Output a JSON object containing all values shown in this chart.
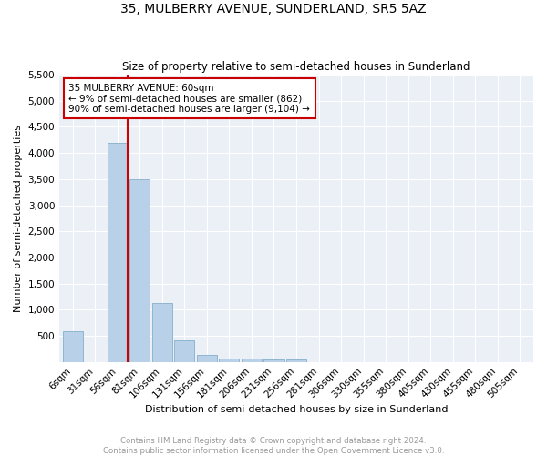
{
  "title": "35, MULBERRY AVENUE, SUNDERLAND, SR5 5AZ",
  "subtitle": "Size of property relative to semi-detached houses in Sunderland",
  "xlabel": "Distribution of semi-detached houses by size in Sunderland",
  "ylabel": "Number of semi-detached properties",
  "categories": [
    "6sqm",
    "31sqm",
    "56sqm",
    "81sqm",
    "106sqm",
    "131sqm",
    "156sqm",
    "181sqm",
    "206sqm",
    "231sqm",
    "256sqm",
    "281sqm",
    "306sqm",
    "330sqm",
    "355sqm",
    "380sqm",
    "405sqm",
    "430sqm",
    "455sqm",
    "480sqm",
    "505sqm"
  ],
  "bar_values": [
    580,
    0,
    4200,
    3500,
    1130,
    420,
    140,
    70,
    60,
    50,
    50,
    0,
    0,
    0,
    0,
    0,
    0,
    0,
    0,
    0,
    0
  ],
  "bar_color": "#b8d0e8",
  "bar_edge_color": "#85aecb",
  "vline_color": "#cc0000",
  "vline_x_index": 2,
  "ylim": [
    0,
    5500
  ],
  "yticks": [
    0,
    500,
    1000,
    1500,
    2000,
    2500,
    3000,
    3500,
    4000,
    4500,
    5000,
    5500
  ],
  "annotation_title": "35 MULBERRY AVENUE: 60sqm",
  "annotation_line1": "← 9% of semi-detached houses are smaller (862)",
  "annotation_line2": "90% of semi-detached houses are larger (9,104) →",
  "annotation_box_facecolor": "#ffffff",
  "annotation_box_edgecolor": "#cc0000",
  "footer_line1": "Contains HM Land Registry data © Crown copyright and database right 2024.",
  "footer_line2": "Contains public sector information licensed under the Open Government Licence v3.0.",
  "bg_color": "#eaf0f6",
  "fig_bg_color": "#ffffff"
}
